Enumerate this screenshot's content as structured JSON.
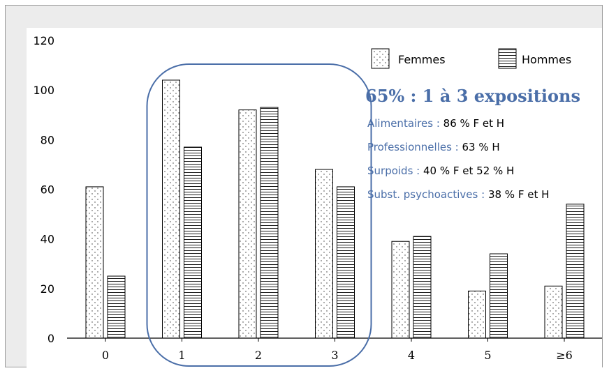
{
  "colors": {
    "accent": "#4a6ea8",
    "bar_stroke": "#000000",
    "frame_bg": "#ececec"
  },
  "chart_data": {
    "type": "bar",
    "categories": [
      "0",
      "1",
      "2",
      "3",
      "4",
      "5",
      "≥6"
    ],
    "series": [
      {
        "name": "Femmes",
        "pattern": "dots",
        "values": [
          61,
          104,
          92,
          68,
          39,
          19,
          21
        ]
      },
      {
        "name": "Hommes",
        "pattern": "horizontal-lines",
        "values": [
          25,
          77,
          93,
          61,
          41,
          34,
          54
        ]
      }
    ],
    "yticks": [
      "0",
      "20",
      "40",
      "60",
      "80",
      "100",
      "120"
    ],
    "ylim": [
      0,
      120
    ],
    "xlabel": "",
    "ylabel": "",
    "grid": false,
    "legend_position": "top-right",
    "highlight": {
      "categories": [
        "1",
        "2",
        "3"
      ],
      "shape": "rounded-rectangle"
    }
  },
  "annotation": {
    "headline": "65% : 1 à 3 expositions",
    "notes": [
      {
        "label": "Alimentaires :",
        "value": " 86 % F et H"
      },
      {
        "label": "Professionnelles :",
        "value": " 63 % H"
      },
      {
        "label": "Surpoids :",
        "value": " 40 % F et 52 % H"
      },
      {
        "label": "Subst. psychoactives :",
        "value": " 38 % F et H"
      }
    ]
  }
}
